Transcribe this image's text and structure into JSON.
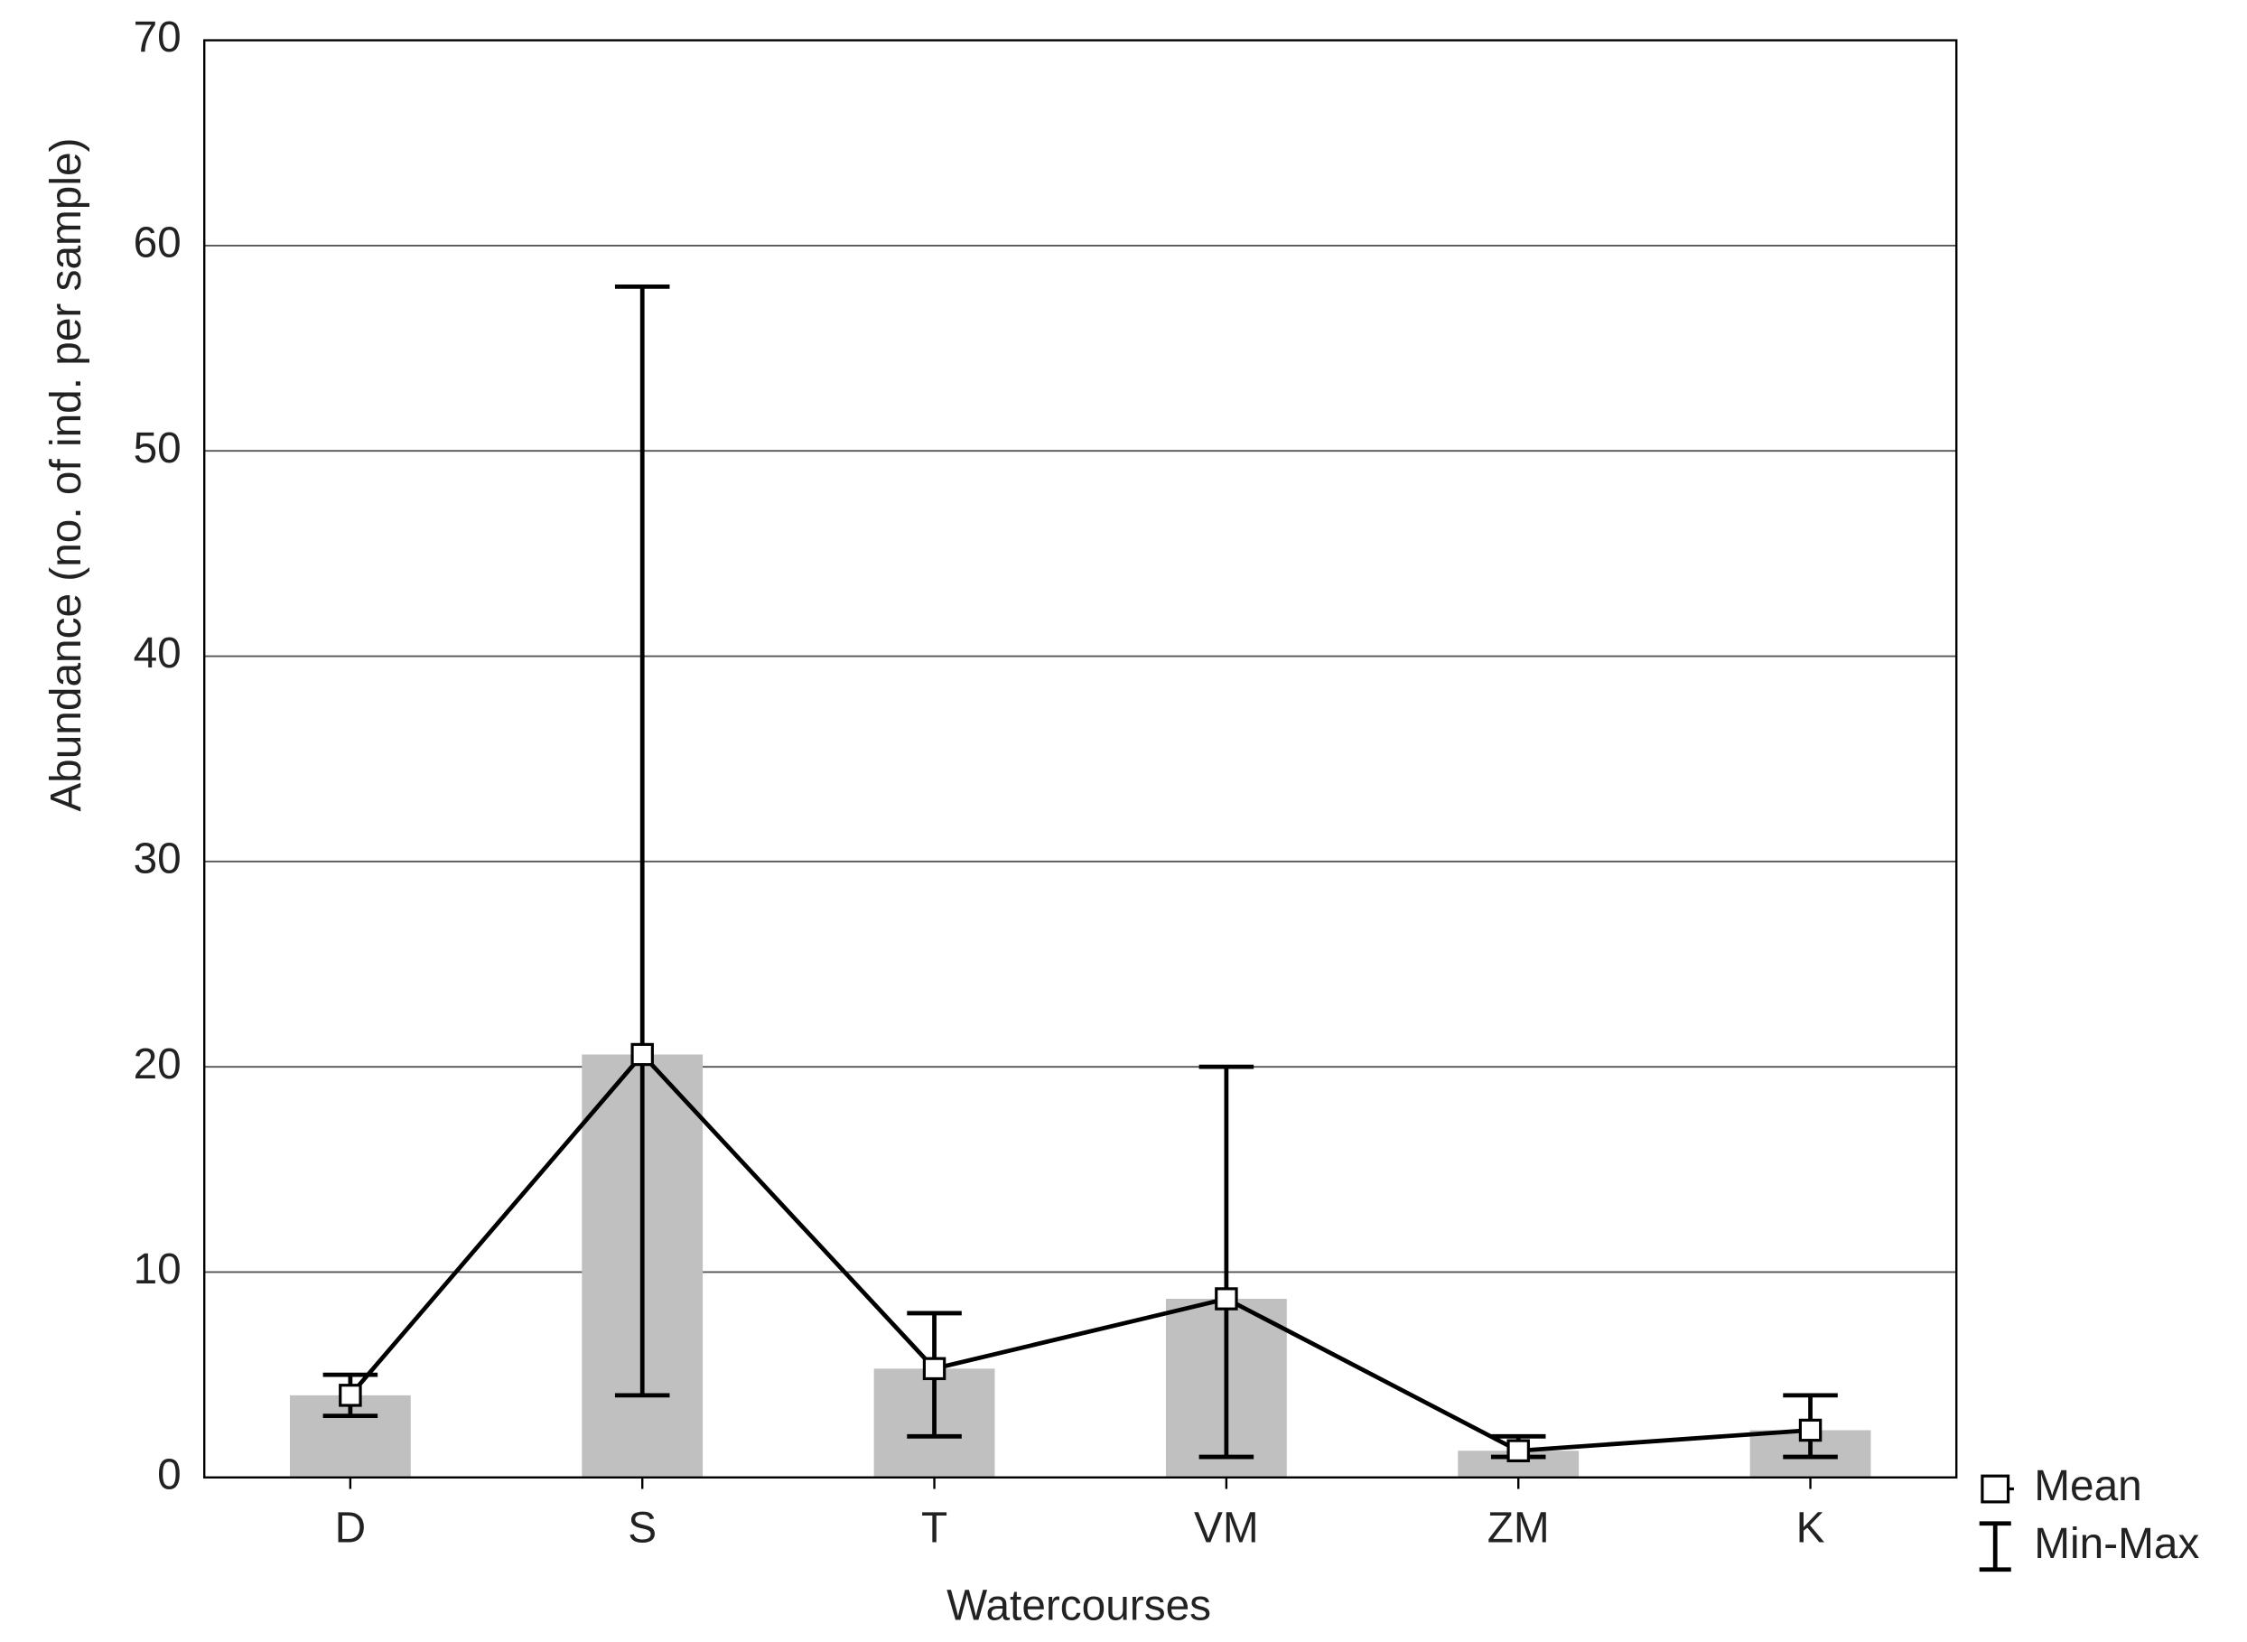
{
  "chart_data": {
    "type": "bar",
    "x_label": "Watercourses",
    "y_label": "Abundance  (no. of ind. per sample)",
    "categories": [
      "D",
      "S",
      "T",
      "VM",
      "ZM",
      "K"
    ],
    "series": [
      {
        "name": "Mean",
        "color": "#c0c0c0",
        "values": [
          4,
          20.6,
          5.3,
          8.7,
          1.3,
          2.3
        ]
      }
    ],
    "error_bars": {
      "name": "Min-Max",
      "min": [
        3,
        4,
        2,
        1,
        1,
        1
      ],
      "max": [
        5,
        58,
        8,
        20,
        2,
        4
      ]
    },
    "ylim": [
      0,
      70
    ],
    "yticks": [
      0,
      10,
      20,
      30,
      40,
      50,
      60,
      70
    ],
    "grid": true,
    "legend": "bottom-right"
  }
}
